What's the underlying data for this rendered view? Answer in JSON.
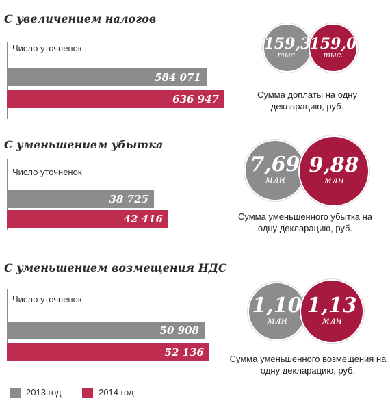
{
  "colors": {
    "bar_2013": "#8c8c8c",
    "bar_2014": "#be2d4f",
    "circle_2014": "#a8193f"
  },
  "chart_data": [
    {
      "type": "bar",
      "title": "С увеличением налогов",
      "metric_label": "Число уточненок",
      "categories": [
        "2013 год",
        "2014 год"
      ],
      "values": [
        584071,
        636947
      ],
      "value_labels": [
        "584 071",
        "636 947"
      ],
      "average": {
        "caption": "Сумма доплаты на одну декларацию, руб.",
        "values": [
          {
            "num": "159,3",
            "unit": "тыс."
          },
          {
            "num": "159,0",
            "unit": "тыс."
          }
        ]
      }
    },
    {
      "type": "bar",
      "title": "С уменьшением убытка",
      "metric_label": "Число уточненок",
      "categories": [
        "2013 год",
        "2014 год"
      ],
      "values": [
        38725,
        42416
      ],
      "value_labels": [
        "38 725",
        "42 416"
      ],
      "average": {
        "caption": "Сумма уменьшенного убытка на одну декларацию, руб.",
        "values": [
          {
            "num": "7,69",
            "unit": "млн"
          },
          {
            "num": "9,88",
            "unit": "млн"
          }
        ]
      }
    },
    {
      "type": "bar",
      "title": "С уменьшением возмещения НДС",
      "metric_label": "Число уточненок",
      "categories": [
        "2013 год",
        "2014 год"
      ],
      "values": [
        50908,
        52136
      ],
      "value_labels": [
        "50 908",
        "52 136"
      ],
      "average": {
        "caption": "Сумма уменьшенного возмещения на одну декларацию, руб.",
        "values": [
          {
            "num": "1,10",
            "unit": "млн"
          },
          {
            "num": "1,13",
            "unit": "млн"
          }
        ]
      }
    }
  ],
  "legend": [
    {
      "label": "2013 год",
      "color": "#8c8c8c"
    },
    {
      "label": "2014 год",
      "color": "#be2d4f"
    }
  ]
}
